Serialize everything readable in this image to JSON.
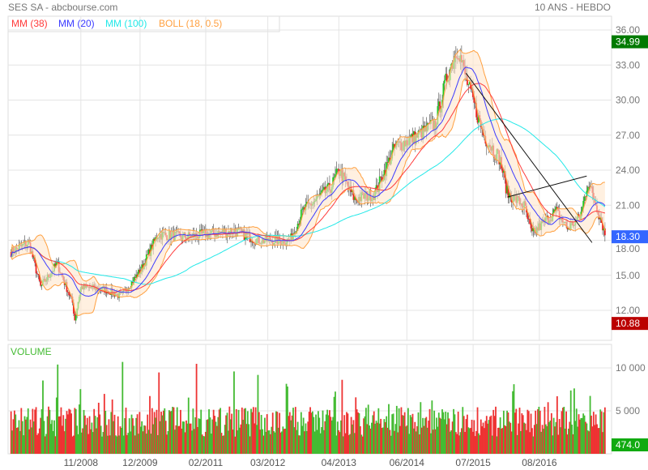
{
  "header": {
    "title": "SES SA - abcbourse.com",
    "period": "10 ANS - HEBDO"
  },
  "legend": [
    {
      "label": "MM (38)",
      "color": "#ff3b3b",
      "period": 38
    },
    {
      "label": "MM (20)",
      "color": "#3b3bff",
      "period": 20
    },
    {
      "label": "MM (100)",
      "color": "#22e8e8",
      "period": 100
    },
    {
      "label": "BOLL (18, 0.5)",
      "color": "#ffa040",
      "period": 18
    }
  ],
  "chart_data": {
    "type": "candlestick",
    "title": "SES SA",
    "y_ticks": [
      "36.00",
      "33.00",
      "30.00",
      "27.00",
      "24.00",
      "21.00",
      "18.00",
      "15.00",
      "12.00"
    ],
    "ylim": [
      10.8,
      37.2
    ],
    "xlim": [
      2007.6,
      2017.8
    ],
    "x_ticks": [
      {
        "label": "11/2008",
        "t": 2008.83
      },
      {
        "label": "12/2009",
        "t": 2009.83
      },
      {
        "label": "02/2011",
        "t": 2010.94
      },
      {
        "label": "03/2012",
        "t": 2011.99
      },
      {
        "label": "04/2013",
        "t": 2013.19
      },
      {
        "label": "06/2014",
        "t": 2014.34
      },
      {
        "label": "07/2015",
        "t": 2015.46
      },
      {
        "label": "08/2016",
        "t": 2016.58
      }
    ],
    "price_path": [
      [
        2007.65,
        17
      ],
      [
        2007.95,
        17.8
      ],
      [
        2008.15,
        14
      ],
      [
        2008.43,
        16
      ],
      [
        2008.7,
        12.5
      ],
      [
        2008.72,
        11
      ],
      [
        2008.83,
        14
      ],
      [
        2009.24,
        13.8
      ],
      [
        2009.51,
        13.2
      ],
      [
        2009.85,
        15.5
      ],
      [
        2010.13,
        18.5
      ],
      [
        2010.6,
        18.3
      ],
      [
        2011.42,
        18.8
      ],
      [
        2011.83,
        18
      ],
      [
        2012.37,
        18
      ],
      [
        2012.58,
        20.5
      ],
      [
        2013.05,
        22.5
      ],
      [
        2013.19,
        24
      ],
      [
        2013.46,
        21.5
      ],
      [
        2013.8,
        22
      ],
      [
        2014.14,
        26
      ],
      [
        2014.55,
        27
      ],
      [
        2014.82,
        28
      ],
      [
        2015.02,
        32
      ],
      [
        2015.2,
        34.5
      ],
      [
        2015.36,
        31.5
      ],
      [
        2015.64,
        27
      ],
      [
        2015.91,
        25
      ],
      [
        2016.04,
        22
      ],
      [
        2016.32,
        21
      ],
      [
        2016.45,
        18.5
      ],
      [
        2016.86,
        20.5
      ],
      [
        2017.06,
        19
      ],
      [
        2017.27,
        20
      ],
      [
        2017.4,
        23
      ],
      [
        2017.61,
        20
      ],
      [
        2017.7,
        18.3
      ]
    ],
    "trendlines": [
      [
        [
          2015.34,
          32.3
        ],
        [
          2017.47,
          17.8
        ]
      ],
      [
        [
          2016.04,
          21.7
        ],
        [
          2017.38,
          23.5
        ]
      ]
    ],
    "badges": {
      "high": "34.99",
      "last": "18.30",
      "low": "10.88",
      "volume_last": "474.0"
    },
    "volume": {
      "label": "VOLUME",
      "y_ticks": [
        "10 000",
        "5 000"
      ],
      "ylim": [
        0,
        12800
      ]
    }
  }
}
